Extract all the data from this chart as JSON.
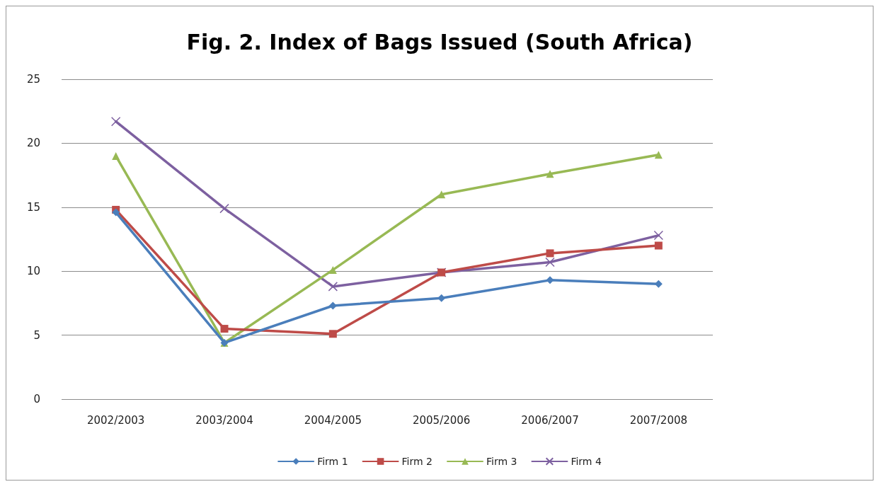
{
  "chart_data": {
    "type": "line",
    "title": "Fig. 2. Index of Bags Issued (South Africa)",
    "categories": [
      "2002/2003",
      "2003/2004",
      "2004/2005",
      "2005/2006",
      "2006/2007",
      "2007/2008"
    ],
    "series": [
      {
        "name": "Firm 1",
        "color": "#4a7ebb",
        "marker": "diamond",
        "values": [
          14.6,
          4.4,
          7.3,
          7.9,
          9.3,
          9.0
        ]
      },
      {
        "name": "Firm 2",
        "color": "#be4b48",
        "marker": "square",
        "values": [
          14.8,
          5.5,
          5.1,
          9.9,
          11.4,
          12.0
        ]
      },
      {
        "name": "Firm 3",
        "color": "#98b954",
        "marker": "triangle",
        "values": [
          19.0,
          4.4,
          10.1,
          16.0,
          17.6,
          19.1
        ]
      },
      {
        "name": "Firm 4",
        "color": "#7d60a0",
        "marker": "cross",
        "values": [
          21.7,
          14.9,
          8.8,
          9.9,
          10.7,
          12.8
        ]
      }
    ],
    "ylim": [
      0,
      25
    ],
    "yticks": [
      0,
      5,
      10,
      15,
      20,
      25
    ],
    "grid": "y",
    "legend": "bottom",
    "line_style": "solid"
  }
}
